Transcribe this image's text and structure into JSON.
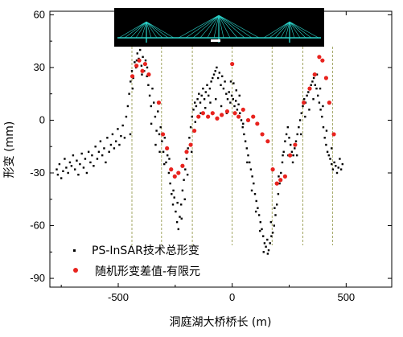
{
  "chart_data": {
    "type": "scatter",
    "xlabel": "洞庭湖大桥桥长 (m)",
    "ylabel": "形变 (mm)",
    "xlim": [
      -800,
      700
    ],
    "ylim": [
      -95,
      62
    ],
    "xticks": [
      -500,
      0,
      500
    ],
    "xtick_labels": [
      "-500",
      "0",
      "500"
    ],
    "yticks": [
      60,
      30,
      0,
      -30,
      -60,
      -90
    ],
    "ytick_labels": [
      "60",
      "30",
      "0",
      "-30",
      "-60",
      "-90"
    ],
    "legend_position": "bottom-left",
    "grid": false,
    "vertical_reference_lines_x": [
      -440,
      -310,
      -175,
      0,
      175,
      310,
      440
    ],
    "inset": "bridge elevation drawing (three cable-stayed towers, cyan on black)",
    "series": [
      {
        "name": "PS-InSAR技术总形变",
        "color": "#000000",
        "marker": "square",
        "points": [
          [
            -770,
            -28
          ],
          [
            -765,
            -31
          ],
          [
            -758,
            -25
          ],
          [
            -750,
            -33
          ],
          [
            -742,
            -29
          ],
          [
            -735,
            -22
          ],
          [
            -728,
            -27
          ],
          [
            -720,
            -30
          ],
          [
            -712,
            -24
          ],
          [
            -705,
            -26
          ],
          [
            -698,
            -20
          ],
          [
            -690,
            -28
          ],
          [
            -682,
            -23
          ],
          [
            -675,
            -31
          ],
          [
            -668,
            -25
          ],
          [
            -660,
            -19
          ],
          [
            -652,
            -27
          ],
          [
            -645,
            -22
          ],
          [
            -638,
            -30
          ],
          [
            -630,
            -18
          ],
          [
            -622,
            -24
          ],
          [
            -615,
            -20
          ],
          [
            -608,
            -26
          ],
          [
            -600,
            -15
          ],
          [
            -592,
            -22
          ],
          [
            -585,
            -18
          ],
          [
            -578,
            -12
          ],
          [
            -570,
            -20
          ],
          [
            -562,
            -16
          ],
          [
            -555,
            -24
          ],
          [
            -548,
            -10
          ],
          [
            -540,
            -18
          ],
          [
            -532,
            -14
          ],
          [
            -525,
            -8
          ],
          [
            -518,
            -16
          ],
          [
            -510,
            -12
          ],
          [
            -502,
            -5
          ],
          [
            -495,
            -14
          ],
          [
            -488,
            -9
          ],
          [
            -480,
            -3
          ],
          [
            -472,
            -10
          ],
          [
            -465,
            2
          ],
          [
            -458,
            8
          ],
          [
            -452,
            15
          ],
          [
            -446,
            22
          ],
          [
            -440,
            28
          ],
          [
            -434,
            24
          ],
          [
            -428,
            33
          ],
          [
            -422,
            30
          ],
          [
            -416,
            38
          ],
          [
            -410,
            35
          ],
          [
            -404,
            40
          ],
          [
            -398,
            31
          ],
          [
            -392,
            36
          ],
          [
            -386,
            28
          ],
          [
            -380,
            34
          ],
          [
            -374,
            25
          ],
          [
            -368,
            20
          ],
          [
            -362,
            14
          ],
          [
            -356,
            8
          ],
          [
            -350,
            18
          ],
          [
            -344,
            10
          ],
          [
            -338,
            2
          ],
          [
            -332,
            -6
          ],
          [
            -326,
            5
          ],
          [
            -320,
            -8
          ],
          [
            -314,
            -4
          ],
          [
            -308,
            -12
          ],
          [
            -302,
            -18
          ],
          [
            -296,
            -10
          ],
          [
            -290,
            -24
          ],
          [
            -284,
            -20
          ],
          [
            -278,
            -30
          ],
          [
            -272,
            -36
          ],
          [
            -266,
            -42
          ],
          [
            -260,
            -48
          ],
          [
            -254,
            -44
          ],
          [
            -248,
            -52
          ],
          [
            -242,
            -58
          ],
          [
            -236,
            -62
          ],
          [
            -230,
            -55
          ],
          [
            -224,
            -48
          ],
          [
            -218,
            -40
          ],
          [
            -212,
            -34
          ],
          [
            -206,
            -28
          ],
          [
            -200,
            -22
          ],
          [
            -194,
            -16
          ],
          [
            -188,
            -10
          ],
          [
            -182,
            -4
          ],
          [
            -176,
            2
          ],
          [
            -170,
            6
          ],
          [
            -164,
            10
          ],
          [
            -158,
            8
          ],
          [
            -152,
            12
          ],
          [
            -146,
            15
          ],
          [
            -140,
            10
          ],
          [
            -134,
            14
          ],
          [
            -128,
            18
          ],
          [
            -122,
            12
          ],
          [
            -116,
            16
          ],
          [
            -110,
            20
          ],
          [
            -104,
            14
          ],
          [
            -98,
            18
          ],
          [
            -92,
            22
          ],
          [
            -86,
            24
          ],
          [
            -80,
            26
          ],
          [
            -74,
            28
          ],
          [
            -68,
            30
          ],
          [
            -62,
            24
          ],
          [
            -56,
            27
          ],
          [
            -50,
            20
          ],
          [
            -44,
            25
          ],
          [
            -38,
            18
          ],
          [
            -32,
            22
          ],
          [
            -26,
            15
          ],
          [
            -20,
            12
          ],
          [
            -14,
            16
          ],
          [
            -8,
            10
          ],
          [
            -2,
            14
          ],
          [
            4,
            12
          ],
          [
            10,
            8
          ],
          [
            16,
            11
          ],
          [
            22,
            6
          ],
          [
            28,
            9
          ],
          [
            34,
            4
          ],
          [
            40,
            0
          ],
          [
            46,
            -4
          ],
          [
            52,
            -8
          ],
          [
            58,
            -12
          ],
          [
            64,
            -16
          ],
          [
            70,
            -20
          ],
          [
            76,
            -24
          ],
          [
            82,
            -28
          ],
          [
            88,
            -32
          ],
          [
            94,
            -36
          ],
          [
            100,
            -42
          ],
          [
            106,
            -46
          ],
          [
            112,
            -50
          ],
          [
            118,
            -54
          ],
          [
            124,
            -58
          ],
          [
            130,
            -62
          ],
          [
            136,
            -66
          ],
          [
            142,
            -70
          ],
          [
            148,
            -72
          ],
          [
            154,
            -68
          ],
          [
            160,
            -74
          ],
          [
            166,
            -70
          ],
          [
            172,
            -66
          ],
          [
            178,
            -64
          ],
          [
            184,
            -60
          ],
          [
            190,
            -54
          ],
          [
            196,
            -48
          ],
          [
            202,
            -42
          ],
          [
            208,
            -36
          ],
          [
            214,
            -30
          ],
          [
            220,
            -24
          ],
          [
            226,
            -18
          ],
          [
            232,
            -12
          ],
          [
            238,
            -8
          ],
          [
            244,
            -4
          ],
          [
            250,
            -10
          ],
          [
            256,
            -14
          ],
          [
            262,
            -18
          ],
          [
            268,
            -20
          ],
          [
            274,
            -16
          ],
          [
            280,
            -12
          ],
          [
            286,
            -8
          ],
          [
            292,
            -4
          ],
          [
            298,
            0
          ],
          [
            304,
            4
          ],
          [
            310,
            8
          ],
          [
            316,
            12
          ],
          [
            322,
            10
          ],
          [
            328,
            14
          ],
          [
            334,
            16
          ],
          [
            340,
            18
          ],
          [
            346,
            20
          ],
          [
            352,
            22
          ],
          [
            358,
            24
          ],
          [
            364,
            20
          ],
          [
            370,
            18
          ],
          [
            376,
            14
          ],
          [
            382,
            10
          ],
          [
            388,
            6
          ],
          [
            394,
            2
          ],
          [
            400,
            -4
          ],
          [
            406,
            -10
          ],
          [
            412,
            -14
          ],
          [
            418,
            -18
          ],
          [
            424,
            -20
          ],
          [
            430,
            -22
          ],
          [
            436,
            -25
          ],
          [
            442,
            -28
          ],
          [
            448,
            -24
          ],
          [
            454,
            -26
          ],
          [
            460,
            -30
          ],
          [
            466,
            -27
          ],
          [
            472,
            -22
          ],
          [
            478,
            -28
          ],
          [
            484,
            -25
          ],
          [
            -447,
            -8
          ],
          [
            -437,
            18
          ],
          [
            -419,
            34
          ],
          [
            -396,
            26
          ],
          [
            -373,
            30
          ],
          [
            -355,
            -2
          ],
          [
            -336,
            -14
          ],
          [
            -318,
            -18
          ],
          [
            -298,
            -25
          ],
          [
            -276,
            -22
          ],
          [
            -258,
            -40
          ],
          [
            -240,
            -47
          ],
          [
            -222,
            -56
          ],
          [
            -208,
            -45
          ],
          [
            -196,
            -31
          ],
          [
            -178,
            -18
          ],
          [
            -162,
            -1
          ],
          [
            -138,
            4
          ],
          [
            -118,
            7
          ],
          [
            -96,
            10
          ],
          [
            -72,
            12
          ],
          [
            -48,
            8
          ],
          [
            -24,
            4
          ],
          [
            -6,
            22
          ],
          [
            6,
            21
          ],
          [
            18,
            17
          ],
          [
            32,
            14
          ],
          [
            48,
            -2
          ],
          [
            66,
            -24
          ],
          [
            86,
            -40
          ],
          [
            104,
            -52
          ],
          [
            122,
            -63
          ],
          [
            138,
            -75
          ],
          [
            156,
            -76
          ],
          [
            170,
            -58
          ],
          [
            186,
            -50
          ],
          [
            204,
            -32
          ],
          [
            222,
            -20
          ],
          [
            246,
            -20
          ],
          [
            266,
            -24
          ],
          [
            284,
            -20
          ],
          [
            302,
            -8
          ],
          [
            320,
            2
          ],
          [
            338,
            6
          ],
          [
            356,
            12
          ],
          [
            372,
            26
          ],
          [
            386,
            18
          ],
          [
            398,
            8
          ],
          [
            414,
            -6
          ],
          [
            436,
            -16
          ]
        ]
      },
      {
        "name": "随机形变差值-有限元",
        "color": "#e8231e",
        "marker": "circle",
        "points": [
          [
            -438,
            25
          ],
          [
            -420,
            31
          ],
          [
            -408,
            34
          ],
          [
            -394,
            28
          ],
          [
            -382,
            32
          ],
          [
            -366,
            26
          ],
          [
            -322,
            10
          ],
          [
            -304,
            -8
          ],
          [
            -286,
            -16
          ],
          [
            -268,
            -28
          ],
          [
            -252,
            -32
          ],
          [
            -236,
            -30
          ],
          [
            -218,
            -26
          ],
          [
            -200,
            -18
          ],
          [
            -182,
            -14
          ],
          [
            -166,
            -6
          ],
          [
            -148,
            2
          ],
          [
            -128,
            4
          ],
          [
            -106,
            2
          ],
          [
            -86,
            4
          ],
          [
            -66,
            1
          ],
          [
            -46,
            3
          ],
          [
            -22,
            5
          ],
          [
            0,
            32
          ],
          [
            12,
            4
          ],
          [
            28,
            2
          ],
          [
            48,
            6
          ],
          [
            70,
            0
          ],
          [
            92,
            2
          ],
          [
            110,
            -2
          ],
          [
            132,
            -8
          ],
          [
            156,
            -12
          ],
          [
            178,
            -28
          ],
          [
            196,
            -36
          ],
          [
            212,
            -34
          ],
          [
            232,
            -32
          ],
          [
            254,
            -20
          ],
          [
            276,
            -14
          ],
          [
            314,
            10
          ],
          [
            340,
            18
          ],
          [
            362,
            26
          ],
          [
            382,
            36
          ],
          [
            396,
            34
          ],
          [
            412,
            24
          ],
          [
            426,
            10
          ],
          [
            446,
            -8
          ]
        ]
      }
    ]
  },
  "legend": {
    "items": [
      {
        "label": "PS-InSAR技术总形变",
        "color": "#000000",
        "marker": "square"
      },
      {
        "label": "随机形变差值-有限元",
        "color": "#e8231e",
        "marker": "circle"
      }
    ]
  },
  "colors": {
    "inset_background": "#000000",
    "inset_bridge": "#2ad1c8",
    "reference_lines": "#8a8f3c"
  }
}
